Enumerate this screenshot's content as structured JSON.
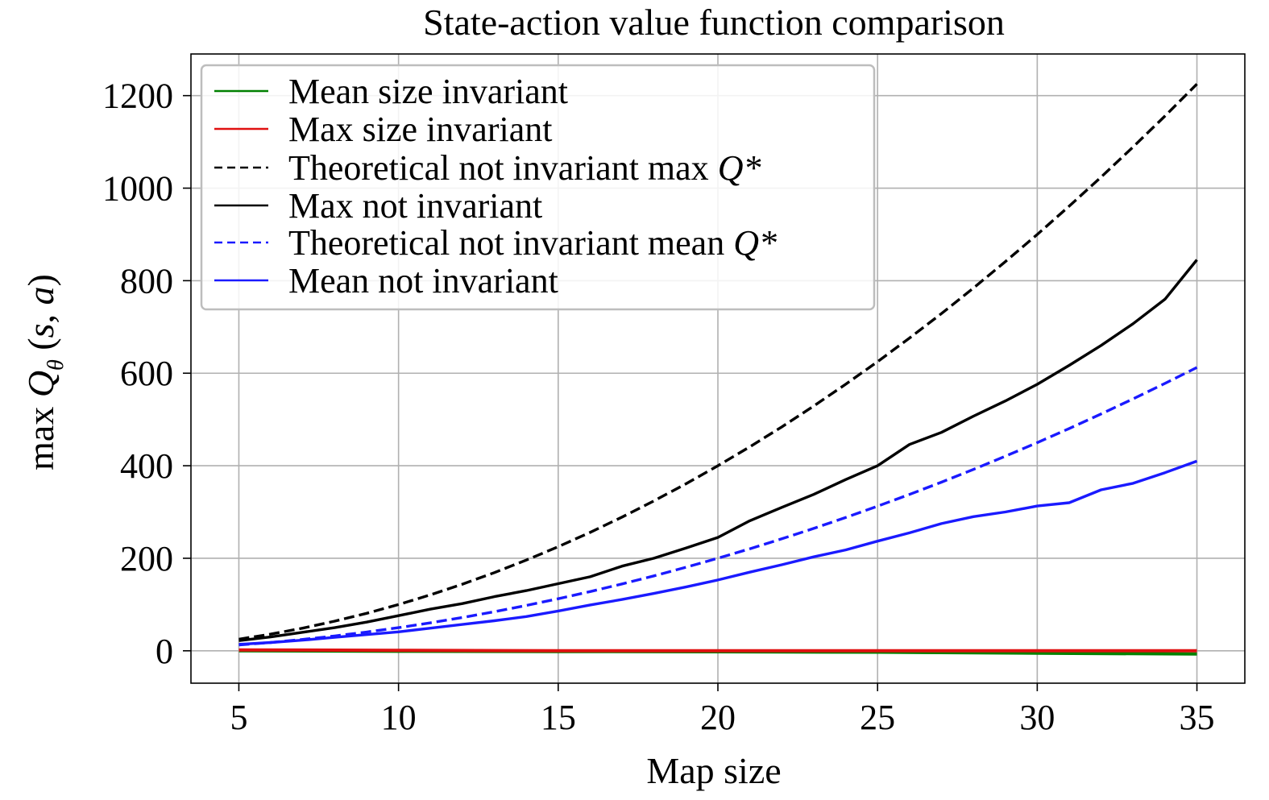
{
  "chart_data": {
    "type": "line",
    "title": "State-action value function comparison",
    "xlabel": "Map size",
    "ylabel": {
      "prefix": "max ",
      "Q": "Q",
      "sub": "θ",
      "open": " (",
      "s": "s",
      "comma": ", ",
      "a": "a",
      "close": ")"
    },
    "xlim": [
      3.5,
      36.5
    ],
    "ylim": [
      -70,
      1290
    ],
    "xticks": [
      5,
      10,
      15,
      20,
      25,
      30,
      35
    ],
    "yticks": [
      0,
      200,
      400,
      600,
      800,
      1000,
      1200
    ],
    "grid": true,
    "legend_position": "top-left",
    "series": [
      {
        "name": "Mean size invariant",
        "color": "#008000",
        "dash": "solid",
        "x": [
          5,
          10,
          15,
          20,
          25,
          30,
          35
        ],
        "y": [
          0,
          -1,
          -1.5,
          -2,
          -3,
          -5,
          -7
        ]
      },
      {
        "name": "Max size invariant",
        "color": "#e01010",
        "dash": "solid",
        "x": [
          5,
          10,
          15,
          20,
          25,
          30,
          35
        ],
        "y": [
          2,
          1,
          0,
          0,
          0,
          0,
          0
        ]
      },
      {
        "name_parts": [
          "Theoretical not invariant max ",
          "Q*"
        ],
        "color": "#000000",
        "dash": "dashed",
        "x": [
          5,
          6,
          7,
          8,
          9,
          10,
          11,
          12,
          13,
          14,
          15,
          16,
          17,
          18,
          19,
          20,
          21,
          22,
          23,
          24,
          25,
          26,
          27,
          28,
          29,
          30,
          31,
          32,
          33,
          34,
          35
        ],
        "y": [
          25,
          36,
          49,
          64,
          81,
          100,
          121,
          144,
          169,
          196,
          225,
          256,
          289,
          324,
          361,
          400,
          441,
          484,
          529,
          576,
          625,
          676,
          729,
          784,
          841,
          900,
          961,
          1024,
          1089,
          1156,
          1225
        ]
      },
      {
        "name": "Max not invariant",
        "color": "#000000",
        "dash": "solid",
        "x": [
          5,
          6,
          7,
          8,
          9,
          10,
          11,
          12,
          13,
          14,
          15,
          16,
          17,
          18,
          19,
          20,
          21,
          22,
          23,
          24,
          25,
          26,
          27,
          28,
          29,
          30,
          31,
          32,
          33,
          34,
          35
        ],
        "y": [
          22,
          30,
          40,
          50,
          62,
          76,
          90,
          102,
          117,
          130,
          145,
          160,
          183,
          200,
          222,
          245,
          281,
          310,
          338,
          370,
          400,
          446,
          472,
          507,
          540,
          576,
          617,
          660,
          707,
          760,
          845
        ]
      },
      {
        "name_parts": [
          "Theoretical not invariant mean ",
          "Q*"
        ],
        "color": "#1a1aff",
        "dash": "dashed",
        "x": [
          5,
          6,
          7,
          8,
          9,
          10,
          11,
          12,
          13,
          14,
          15,
          16,
          17,
          18,
          19,
          20,
          21,
          22,
          23,
          24,
          25,
          26,
          27,
          28,
          29,
          30,
          31,
          32,
          33,
          34,
          35
        ],
        "y": [
          12.5,
          18,
          24.5,
          32,
          40.5,
          50,
          60.5,
          72,
          84.5,
          98,
          112.5,
          128,
          144.5,
          162,
          180.5,
          200,
          220.5,
          242,
          264.5,
          288,
          312.5,
          338,
          364.5,
          392,
          420.5,
          450,
          480.5,
          512,
          544.5,
          578,
          612.5
        ]
      },
      {
        "name": "Mean not invariant",
        "color": "#1a1aff",
        "dash": "solid",
        "x": [
          5,
          6,
          7,
          8,
          9,
          10,
          11,
          12,
          13,
          14,
          15,
          16,
          17,
          18,
          19,
          20,
          21,
          22,
          23,
          24,
          25,
          26,
          27,
          28,
          29,
          30,
          31,
          32,
          33,
          34,
          35
        ],
        "y": [
          14,
          18,
          23,
          29,
          35,
          41,
          49,
          57,
          65,
          74,
          86,
          99,
          111,
          124,
          138,
          153,
          170,
          186,
          203,
          218,
          237,
          255,
          275,
          290,
          300,
          313,
          320,
          348,
          362,
          385,
          410
        ]
      }
    ]
  }
}
